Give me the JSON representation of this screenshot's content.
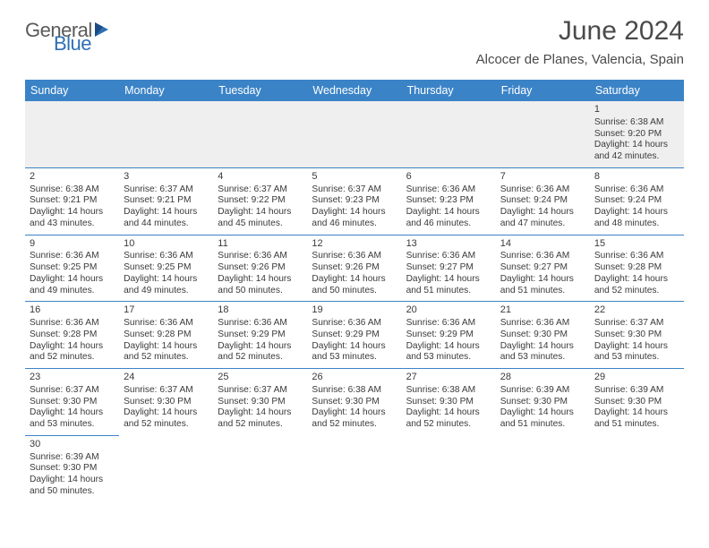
{
  "brand": {
    "part1": "General",
    "part2": "Blue"
  },
  "title": "June 2024",
  "location": "Alcocer de Planes, Valencia, Spain",
  "colors": {
    "accent": "#3b83c7",
    "text": "#3a3a3a",
    "header_text": "#4a4a4a",
    "blank_bg": "#efefef"
  },
  "daynames": [
    "Sunday",
    "Monday",
    "Tuesday",
    "Wednesday",
    "Thursday",
    "Friday",
    "Saturday"
  ],
  "layout": {
    "first_weekday_index": 6,
    "days_in_month": 30,
    "rows": 6
  },
  "days": {
    "1": {
      "sunrise": "6:38 AM",
      "sunset": "9:20 PM",
      "daylight": "14 hours and 42 minutes."
    },
    "2": {
      "sunrise": "6:38 AM",
      "sunset": "9:21 PM",
      "daylight": "14 hours and 43 minutes."
    },
    "3": {
      "sunrise": "6:37 AM",
      "sunset": "9:21 PM",
      "daylight": "14 hours and 44 minutes."
    },
    "4": {
      "sunrise": "6:37 AM",
      "sunset": "9:22 PM",
      "daylight": "14 hours and 45 minutes."
    },
    "5": {
      "sunrise": "6:37 AM",
      "sunset": "9:23 PM",
      "daylight": "14 hours and 46 minutes."
    },
    "6": {
      "sunrise": "6:36 AM",
      "sunset": "9:23 PM",
      "daylight": "14 hours and 46 minutes."
    },
    "7": {
      "sunrise": "6:36 AM",
      "sunset": "9:24 PM",
      "daylight": "14 hours and 47 minutes."
    },
    "8": {
      "sunrise": "6:36 AM",
      "sunset": "9:24 PM",
      "daylight": "14 hours and 48 minutes."
    },
    "9": {
      "sunrise": "6:36 AM",
      "sunset": "9:25 PM",
      "daylight": "14 hours and 49 minutes."
    },
    "10": {
      "sunrise": "6:36 AM",
      "sunset": "9:25 PM",
      "daylight": "14 hours and 49 minutes."
    },
    "11": {
      "sunrise": "6:36 AM",
      "sunset": "9:26 PM",
      "daylight": "14 hours and 50 minutes."
    },
    "12": {
      "sunrise": "6:36 AM",
      "sunset": "9:26 PM",
      "daylight": "14 hours and 50 minutes."
    },
    "13": {
      "sunrise": "6:36 AM",
      "sunset": "9:27 PM",
      "daylight": "14 hours and 51 minutes."
    },
    "14": {
      "sunrise": "6:36 AM",
      "sunset": "9:27 PM",
      "daylight": "14 hours and 51 minutes."
    },
    "15": {
      "sunrise": "6:36 AM",
      "sunset": "9:28 PM",
      "daylight": "14 hours and 52 minutes."
    },
    "16": {
      "sunrise": "6:36 AM",
      "sunset": "9:28 PM",
      "daylight": "14 hours and 52 minutes."
    },
    "17": {
      "sunrise": "6:36 AM",
      "sunset": "9:28 PM",
      "daylight": "14 hours and 52 minutes."
    },
    "18": {
      "sunrise": "6:36 AM",
      "sunset": "9:29 PM",
      "daylight": "14 hours and 52 minutes."
    },
    "19": {
      "sunrise": "6:36 AM",
      "sunset": "9:29 PM",
      "daylight": "14 hours and 53 minutes."
    },
    "20": {
      "sunrise": "6:36 AM",
      "sunset": "9:29 PM",
      "daylight": "14 hours and 53 minutes."
    },
    "21": {
      "sunrise": "6:36 AM",
      "sunset": "9:30 PM",
      "daylight": "14 hours and 53 minutes."
    },
    "22": {
      "sunrise": "6:37 AM",
      "sunset": "9:30 PM",
      "daylight": "14 hours and 53 minutes."
    },
    "23": {
      "sunrise": "6:37 AM",
      "sunset": "9:30 PM",
      "daylight": "14 hours and 53 minutes."
    },
    "24": {
      "sunrise": "6:37 AM",
      "sunset": "9:30 PM",
      "daylight": "14 hours and 52 minutes."
    },
    "25": {
      "sunrise": "6:37 AM",
      "sunset": "9:30 PM",
      "daylight": "14 hours and 52 minutes."
    },
    "26": {
      "sunrise": "6:38 AM",
      "sunset": "9:30 PM",
      "daylight": "14 hours and 52 minutes."
    },
    "27": {
      "sunrise": "6:38 AM",
      "sunset": "9:30 PM",
      "daylight": "14 hours and 52 minutes."
    },
    "28": {
      "sunrise": "6:39 AM",
      "sunset": "9:30 PM",
      "daylight": "14 hours and 51 minutes."
    },
    "29": {
      "sunrise": "6:39 AM",
      "sunset": "9:30 PM",
      "daylight": "14 hours and 51 minutes."
    },
    "30": {
      "sunrise": "6:39 AM",
      "sunset": "9:30 PM",
      "daylight": "14 hours and 50 minutes."
    }
  },
  "labels": {
    "sunrise": "Sunrise:",
    "sunset": "Sunset:",
    "daylight": "Daylight:"
  }
}
